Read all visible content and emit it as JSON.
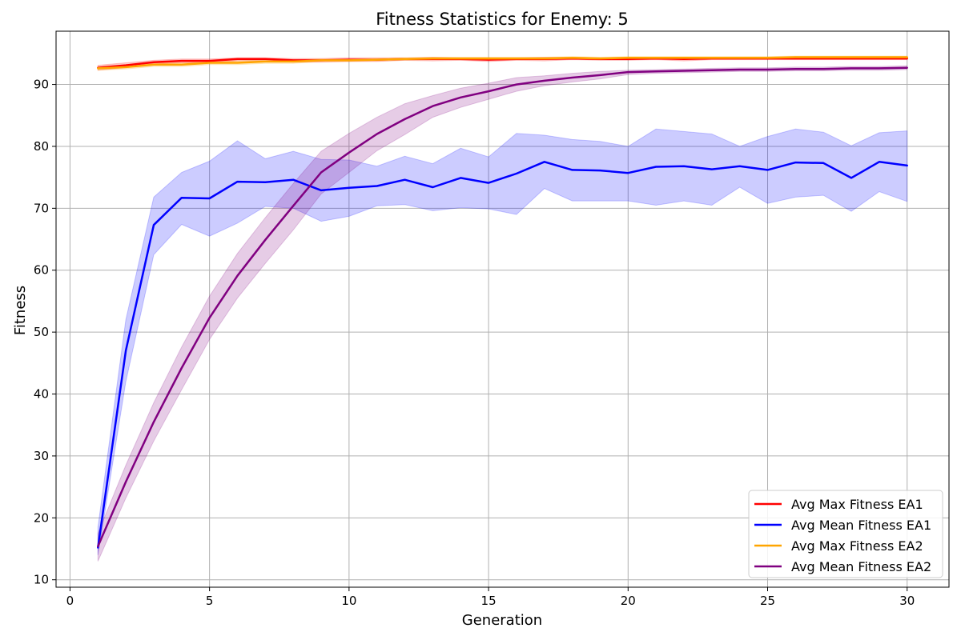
{
  "chart_data": {
    "type": "line",
    "title": "Fitness Statistics for Enemy: 5",
    "xlabel": "Generation",
    "ylabel": "Fitness",
    "xlim": [
      -0.5,
      31.5
    ],
    "ylim": [
      8.8,
      98.6
    ],
    "xticks": [
      0,
      5,
      10,
      15,
      20,
      25,
      30
    ],
    "yticks": [
      10,
      20,
      30,
      40,
      50,
      60,
      70,
      80,
      90
    ],
    "grid": true,
    "legend_position": "bottom-right",
    "x": [
      1,
      2,
      3,
      4,
      5,
      6,
      7,
      8,
      9,
      10,
      11,
      12,
      13,
      14,
      15,
      16,
      17,
      18,
      19,
      20,
      21,
      22,
      23,
      24,
      25,
      26,
      27,
      28,
      29,
      30
    ],
    "series": [
      {
        "name": "Avg Max Fitness EA1",
        "color": "#ff0000",
        "values": [
          92.7,
          93.1,
          93.6,
          93.8,
          93.8,
          94.1,
          94.1,
          93.9,
          93.9,
          94.0,
          94.0,
          94.1,
          94.1,
          94.1,
          94.0,
          94.1,
          94.1,
          94.2,
          94.1,
          94.1,
          94.2,
          94.1,
          94.2,
          94.2,
          94.2,
          94.2,
          94.2,
          94.2,
          94.2,
          94.2
        ],
        "upper": [
          93.1,
          93.5,
          93.9,
          94.1,
          94.1,
          94.3,
          94.3,
          94.2,
          94.2,
          94.3,
          94.3,
          94.3,
          94.4,
          94.3,
          94.3,
          94.3,
          94.4,
          94.4,
          94.3,
          94.3,
          94.4,
          94.4,
          94.4,
          94.4,
          94.4,
          94.4,
          94.4,
          94.4,
          94.4,
          94.4
        ],
        "lower": [
          92.3,
          92.7,
          93.3,
          93.5,
          93.5,
          93.8,
          93.8,
          93.6,
          93.6,
          93.7,
          93.7,
          93.9,
          93.8,
          93.9,
          93.7,
          93.9,
          93.8,
          94.0,
          93.9,
          93.9,
          94.0,
          93.8,
          94.0,
          94.0,
          94.0,
          94.0,
          94.0,
          94.0,
          94.0,
          94.0
        ]
      },
      {
        "name": "Avg Mean Fitness EA1",
        "color": "#0000ff",
        "values": [
          15.2,
          47.0,
          67.3,
          71.7,
          71.6,
          74.3,
          74.2,
          74.6,
          72.9,
          73.3,
          73.6,
          74.6,
          73.4,
          74.9,
          74.1,
          75.6,
          77.5,
          76.2,
          76.1,
          75.7,
          76.7,
          76.8,
          76.3,
          76.8,
          76.2,
          77.4,
          77.3,
          74.9,
          77.5,
          76.9
        ],
        "upper": [
          18.5,
          52.0,
          71.8,
          75.8,
          77.6,
          80.9,
          78.0,
          79.2,
          77.9,
          77.8,
          76.8,
          78.4,
          77.2,
          79.7,
          78.3,
          82.1,
          81.8,
          81.1,
          80.8,
          80.0,
          82.8,
          82.4,
          82.0,
          80.0,
          81.6,
          82.8,
          82.3,
          80.1,
          82.2,
          82.5
        ],
        "lower": [
          14.0,
          42.0,
          62.5,
          67.4,
          65.5,
          67.6,
          70.3,
          70.0,
          67.9,
          68.7,
          70.4,
          70.6,
          69.6,
          70.1,
          69.9,
          69.0,
          73.2,
          71.2,
          71.2,
          71.2,
          70.5,
          71.2,
          70.5,
          73.4,
          70.8,
          71.8,
          72.1,
          69.5,
          72.7,
          71.1
        ]
      },
      {
        "name": "Avg Max Fitness EA2",
        "color": "#ffa500",
        "values": [
          92.6,
          92.8,
          93.2,
          93.2,
          93.5,
          93.5,
          93.7,
          93.7,
          93.9,
          93.9,
          94.0,
          94.1,
          94.2,
          94.2,
          94.2,
          94.2,
          94.2,
          94.3,
          94.2,
          94.3,
          94.3,
          94.3,
          94.3,
          94.3,
          94.3,
          94.4,
          94.4,
          94.4,
          94.4,
          94.4
        ],
        "upper": [
          92.9,
          93.1,
          93.5,
          93.5,
          93.8,
          93.8,
          94.0,
          94.0,
          94.1,
          94.1,
          94.2,
          94.3,
          94.4,
          94.4,
          94.4,
          94.4,
          94.4,
          94.5,
          94.4,
          94.5,
          94.5,
          94.5,
          94.5,
          94.5,
          94.5,
          94.6,
          94.6,
          94.6,
          94.6,
          94.6
        ],
        "lower": [
          92.3,
          92.5,
          92.9,
          92.9,
          93.2,
          93.2,
          93.4,
          93.4,
          93.7,
          93.7,
          93.8,
          93.9,
          94.0,
          94.0,
          94.0,
          94.0,
          94.0,
          94.1,
          94.0,
          94.1,
          94.1,
          94.1,
          94.1,
          94.1,
          94.1,
          94.2,
          94.2,
          94.2,
          94.2,
          94.2
        ]
      },
      {
        "name": "Avg Mean Fitness EA2",
        "color": "#800080",
        "values": [
          15.4,
          25.8,
          35.5,
          44.2,
          52.3,
          59.1,
          64.9,
          70.4,
          75.8,
          79.0,
          82.0,
          84.4,
          86.5,
          87.9,
          88.9,
          90.0,
          90.6,
          91.1,
          91.5,
          92.0,
          92.1,
          92.2,
          92.3,
          92.4,
          92.4,
          92.5,
          92.5,
          92.6,
          92.6,
          92.7
        ],
        "upper": [
          17.5,
          28.5,
          38.6,
          47.6,
          55.8,
          62.7,
          68.5,
          74.0,
          79.2,
          82.1,
          84.7,
          86.9,
          88.2,
          89.4,
          90.2,
          91.1,
          91.4,
          91.8,
          92.1,
          92.3,
          92.4,
          92.5,
          92.6,
          92.7,
          92.7,
          92.8,
          92.8,
          92.9,
          92.9,
          93.0
        ],
        "lower": [
          13.0,
          23.2,
          32.4,
          40.7,
          48.8,
          55.5,
          61.1,
          66.5,
          72.3,
          75.8,
          79.3,
          81.9,
          84.7,
          86.3,
          87.6,
          88.9,
          89.8,
          90.4,
          90.9,
          91.6,
          91.8,
          91.9,
          92.0,
          92.1,
          92.1,
          92.2,
          92.2,
          92.3,
          92.3,
          92.4
        ]
      }
    ]
  }
}
